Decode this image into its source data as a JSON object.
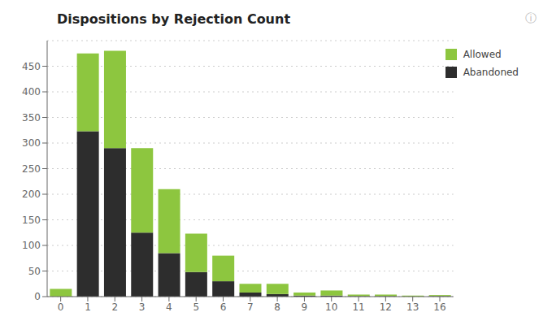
{
  "chart_data": {
    "type": "bar",
    "title": "Dispositions by Rejection Count",
    "categories": [
      0,
      1,
      2,
      3,
      4,
      5,
      6,
      7,
      8,
      9,
      10,
      11,
      12,
      13,
      16
    ],
    "series": [
      {
        "name": "Abandoned",
        "color": "#2d2d2d",
        "values": [
          0,
          323,
          290,
          125,
          85,
          48,
          30,
          8,
          5,
          2,
          2,
          1,
          1,
          0,
          1
        ]
      },
      {
        "name": "Allowed",
        "color": "#8dc63f",
        "values": [
          15,
          152,
          190,
          165,
          125,
          75,
          50,
          17,
          20,
          6,
          10,
          3,
          3,
          2,
          2
        ]
      }
    ],
    "stacked": true,
    "ylim": [
      0,
      500
    ],
    "yticks": [
      0,
      50,
      100,
      150,
      200,
      250,
      300,
      350,
      400,
      450
    ],
    "grid": true,
    "legend": "upper right",
    "annotations": [
      "ⓘ"
    ]
  }
}
